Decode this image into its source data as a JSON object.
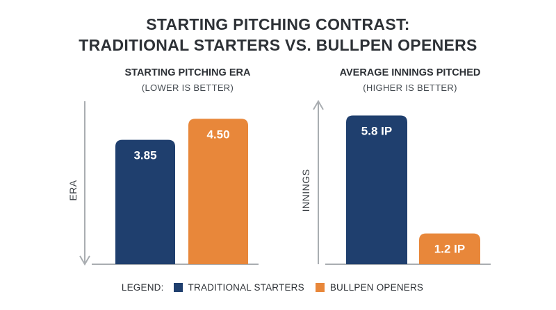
{
  "title_line1": "STARTING PITCHING CONTRAST:",
  "title_line2": "TRADITIONAL STARTERS VS. BULLPEN OPENERS",
  "legend": {
    "label": "LEGEND:",
    "items": [
      {
        "name": "TRADITIONAL STARTERS",
        "color": "#1f3f6e"
      },
      {
        "name": "BULLPEN OPENERS",
        "color": "#e8873a"
      }
    ]
  },
  "chart_data": [
    {
      "type": "bar",
      "title": "STARTING PITCHING ERA",
      "subtitle": "(LOWER IS BETTER)",
      "ylabel": "ERA",
      "axis_arrow": "down",
      "categories": [
        "TRADITIONAL STARTERS",
        "BULLPEN OPENERS"
      ],
      "values": [
        3.85,
        4.5
      ],
      "data_labels": [
        "3.85",
        "4.50"
      ],
      "colors": [
        "#1f3f6e",
        "#e8873a"
      ],
      "ylim": [
        0,
        5
      ],
      "grid": false
    },
    {
      "type": "bar",
      "title": "AVERAGE INNINGS PITCHED",
      "subtitle": "(HIGHER IS BETTER)",
      "ylabel": "INNINGS",
      "axis_arrow": "up",
      "categories": [
        "TRADITIONAL STARTERS",
        "BULLPEN OPENERS"
      ],
      "values": [
        5.8,
        1.2
      ],
      "data_labels": [
        "5.8 IP",
        "1.2 IP"
      ],
      "colors": [
        "#1f3f6e",
        "#e8873a"
      ],
      "ylim": [
        0,
        6.3
      ],
      "grid": false
    }
  ]
}
